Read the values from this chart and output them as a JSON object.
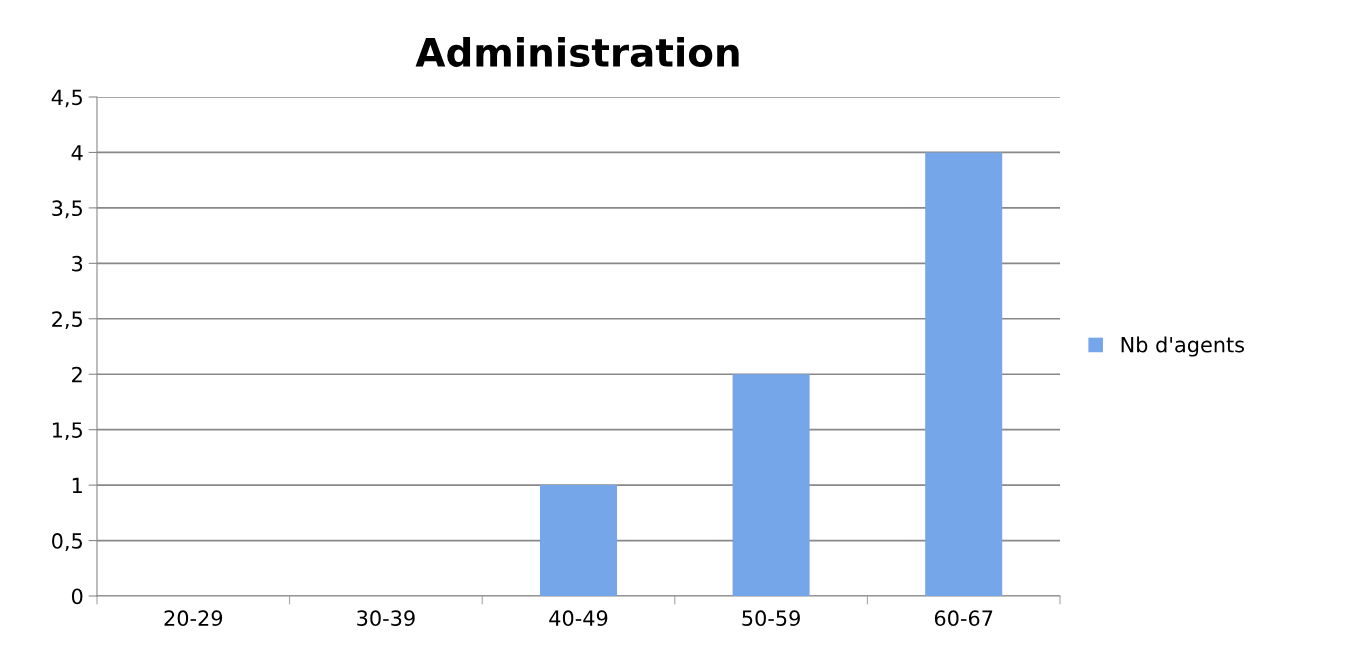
{
  "chart_data": {
    "type": "bar",
    "title": "Administration",
    "categories": [
      "20-29",
      "30-39",
      "40-49",
      "50-59",
      "60-67"
    ],
    "series": [
      {
        "name": "Nb d'agents",
        "color": "#76a6ea",
        "values": [
          0,
          0,
          1,
          2,
          4
        ]
      }
    ],
    "ylim": [
      0,
      4.5
    ],
    "yticks": [
      0,
      {
        "value": 0.5,
        "label": "0,5"
      },
      1,
      {
        "value": 1.5,
        "label": "1,5"
      },
      2,
      {
        "value": 2.5,
        "label": "2,5"
      },
      3,
      {
        "value": 3.5,
        "label": "3,5"
      },
      4,
      {
        "value": 4.5,
        "label": "4,5"
      }
    ],
    "grid": "y",
    "legend": "right"
  }
}
